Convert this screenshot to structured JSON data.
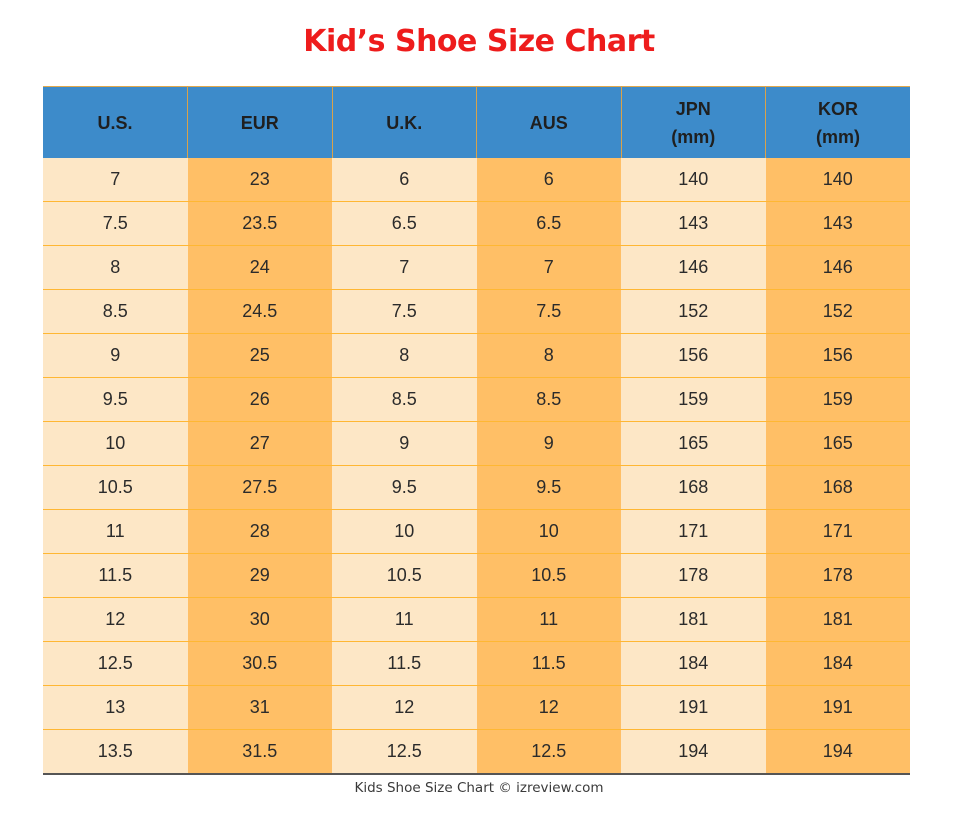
{
  "title": "Kid’s Shoe Size Chart",
  "columns": [
    {
      "line1": "U.S.",
      "line2": ""
    },
    {
      "line1": "EUR",
      "line2": ""
    },
    {
      "line1": "U.K.",
      "line2": ""
    },
    {
      "line1": "AUS",
      "line2": ""
    },
    {
      "line1": "JPN",
      "line2": "(mm)"
    },
    {
      "line1": "KOR",
      "line2": "(mm)"
    }
  ],
  "rows": [
    [
      "7",
      "23",
      "6",
      "6",
      "140",
      "140"
    ],
    [
      "7.5",
      "23.5",
      "6.5",
      "6.5",
      "143",
      "143"
    ],
    [
      "8",
      "24",
      "7",
      "7",
      "146",
      "146"
    ],
    [
      "8.5",
      "24.5",
      "7.5",
      "7.5",
      "152",
      "152"
    ],
    [
      "9",
      "25",
      "8",
      "8",
      "156",
      "156"
    ],
    [
      "9.5",
      "26",
      "8.5",
      "8.5",
      "159",
      "159"
    ],
    [
      "10",
      "27",
      "9",
      "9",
      "165",
      "165"
    ],
    [
      "10.5",
      "27.5",
      "9.5",
      "9.5",
      "168",
      "168"
    ],
    [
      "11",
      "28",
      "10",
      "10",
      "171",
      "171"
    ],
    [
      "11.5",
      "29",
      "10.5",
      "10.5",
      "178",
      "178"
    ],
    [
      "12",
      "30",
      "11",
      "11",
      "181",
      "181"
    ],
    [
      "12.5",
      "30.5",
      "11.5",
      "11.5",
      "184",
      "184"
    ],
    [
      "13",
      "31",
      "12",
      "12",
      "191",
      "191"
    ],
    [
      "13.5",
      "31.5",
      "12.5",
      "12.5",
      "194",
      "194"
    ]
  ],
  "caption": "Kids Shoe Size Chart © izreview.com",
  "colors": {
    "title": "#ee1c1c",
    "header_bg": "#3d8bca",
    "cell_light": "#fde7c6",
    "cell_dark": "#ffbf66",
    "row_border": "#ffb733"
  }
}
